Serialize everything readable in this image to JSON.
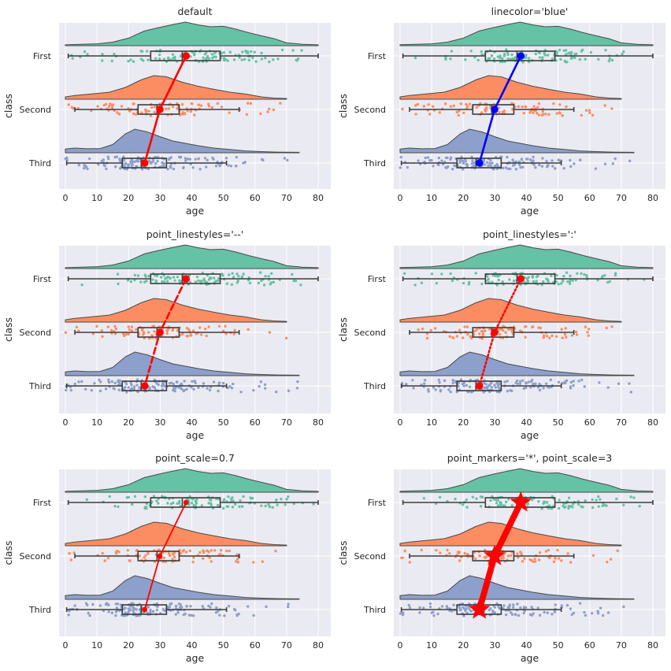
{
  "chart_data": [
    {
      "type": "raincloud",
      "title": "default",
      "xlabel": "age",
      "ylabel": "class",
      "xlim": [
        -2,
        84
      ],
      "xticks": [
        0,
        10,
        20,
        30,
        40,
        50,
        60,
        70,
        80
      ],
      "categories": [
        "First",
        "Second",
        "Third"
      ],
      "colors": [
        "#66c2a5",
        "#fc8d62",
        "#8da0cb"
      ],
      "means": [
        38.2,
        29.9,
        25.1
      ],
      "boxes": [
        {
          "whisker_low": 0.9,
          "q1": 27,
          "median": 37,
          "q3": 49,
          "whisker_high": 80
        },
        {
          "whisker_low": 3,
          "q1": 23,
          "median": 29,
          "q3": 36,
          "whisker_high": 55
        },
        {
          "whisker_low": 0.4,
          "q1": 18,
          "median": 24,
          "q3": 32,
          "whisker_high": 51
        }
      ],
      "point_color": "#ff0000",
      "line_color": "#ff0000",
      "line_style": "solid",
      "marker": "circle",
      "point_scale": 1.0,
      "grid": true
    },
    {
      "type": "raincloud",
      "title": "linecolor='blue'",
      "xlabel": "age",
      "ylabel": "class",
      "xlim": [
        -2,
        84
      ],
      "xticks": [
        0,
        10,
        20,
        30,
        40,
        50,
        60,
        70,
        80
      ],
      "categories": [
        "First",
        "Second",
        "Third"
      ],
      "colors": [
        "#66c2a5",
        "#fc8d62",
        "#8da0cb"
      ],
      "means": [
        38.2,
        29.9,
        25.1
      ],
      "boxes": [
        {
          "whisker_low": 0.9,
          "q1": 27,
          "median": 37,
          "q3": 49,
          "whisker_high": 80
        },
        {
          "whisker_low": 3,
          "q1": 23,
          "median": 29,
          "q3": 36,
          "whisker_high": 55
        },
        {
          "whisker_low": 0.4,
          "q1": 18,
          "median": 24,
          "q3": 32,
          "whisker_high": 51
        }
      ],
      "point_color": "#0000ff",
      "line_color": "#0000ff",
      "line_style": "solid",
      "marker": "circle",
      "point_scale": 1.0,
      "grid": true
    },
    {
      "type": "raincloud",
      "title": "point_linestyles='--'",
      "xlabel": "age",
      "ylabel": "class",
      "xlim": [
        -2,
        84
      ],
      "xticks": [
        0,
        10,
        20,
        30,
        40,
        50,
        60,
        70,
        80
      ],
      "categories": [
        "First",
        "Second",
        "Third"
      ],
      "colors": [
        "#66c2a5",
        "#fc8d62",
        "#8da0cb"
      ],
      "means": [
        38.2,
        29.9,
        25.1
      ],
      "boxes": [
        {
          "whisker_low": 0.9,
          "q1": 27,
          "median": 37,
          "q3": 49,
          "whisker_high": 80
        },
        {
          "whisker_low": 3,
          "q1": 23,
          "median": 29,
          "q3": 36,
          "whisker_high": 55
        },
        {
          "whisker_low": 0.4,
          "q1": 18,
          "median": 24,
          "q3": 32,
          "whisker_high": 51
        }
      ],
      "point_color": "#ff0000",
      "line_color": "#ff0000",
      "line_style": "dashed",
      "marker": "circle",
      "point_scale": 1.0,
      "grid": true
    },
    {
      "type": "raincloud",
      "title": "point_linestyles=':'",
      "xlabel": "age",
      "ylabel": "class",
      "xlim": [
        -2,
        84
      ],
      "xticks": [
        0,
        10,
        20,
        30,
        40,
        50,
        60,
        70,
        80
      ],
      "categories": [
        "First",
        "Second",
        "Third"
      ],
      "colors": [
        "#66c2a5",
        "#fc8d62",
        "#8da0cb"
      ],
      "means": [
        38.2,
        29.9,
        25.1
      ],
      "boxes": [
        {
          "whisker_low": 0.9,
          "q1": 27,
          "median": 37,
          "q3": 49,
          "whisker_high": 80
        },
        {
          "whisker_low": 3,
          "q1": 23,
          "median": 29,
          "q3": 36,
          "whisker_high": 55
        },
        {
          "whisker_low": 0.4,
          "q1": 18,
          "median": 24,
          "q3": 32,
          "whisker_high": 51
        }
      ],
      "point_color": "#ff0000",
      "line_color": "#ff0000",
      "line_style": "dotted",
      "marker": "circle",
      "point_scale": 1.0,
      "grid": true
    },
    {
      "type": "raincloud",
      "title": "point_scale=0.7",
      "xlabel": "age",
      "ylabel": "class",
      "xlim": [
        -2,
        84
      ],
      "xticks": [
        0,
        10,
        20,
        30,
        40,
        50,
        60,
        70,
        80
      ],
      "categories": [
        "First",
        "Second",
        "Third"
      ],
      "colors": [
        "#66c2a5",
        "#fc8d62",
        "#8da0cb"
      ],
      "means": [
        38.2,
        29.9,
        25.1
      ],
      "boxes": [
        {
          "whisker_low": 0.9,
          "q1": 27,
          "median": 37,
          "q3": 49,
          "whisker_high": 80
        },
        {
          "whisker_low": 3,
          "q1": 23,
          "median": 29,
          "q3": 36,
          "whisker_high": 55
        },
        {
          "whisker_low": 0.4,
          "q1": 18,
          "median": 24,
          "q3": 32,
          "whisker_high": 51
        }
      ],
      "point_color": "#ff0000",
      "line_color": "#ff0000",
      "line_style": "solid",
      "marker": "circle",
      "point_scale": 0.7,
      "grid": true
    },
    {
      "type": "raincloud",
      "title": "point_markers='*', point_scale=3",
      "xlabel": "age",
      "ylabel": "class",
      "xlim": [
        -2,
        84
      ],
      "xticks": [
        0,
        10,
        20,
        30,
        40,
        50,
        60,
        70,
        80
      ],
      "categories": [
        "First",
        "Second",
        "Third"
      ],
      "colors": [
        "#66c2a5",
        "#fc8d62",
        "#8da0cb"
      ],
      "means": [
        38.2,
        29.9,
        25.1
      ],
      "boxes": [
        {
          "whisker_low": 0.9,
          "q1": 27,
          "median": 37,
          "q3": 49,
          "whisker_high": 80
        },
        {
          "whisker_low": 3,
          "q1": 23,
          "median": 29,
          "q3": 36,
          "whisker_high": 55
        },
        {
          "whisker_low": 0.4,
          "q1": 18,
          "median": 24,
          "q3": 32,
          "whisker_high": 51
        }
      ],
      "point_color": "#ff0000",
      "line_color": "#ff0000",
      "line_style": "solid",
      "marker": "star",
      "point_scale": 3.0,
      "grid": true
    }
  ]
}
